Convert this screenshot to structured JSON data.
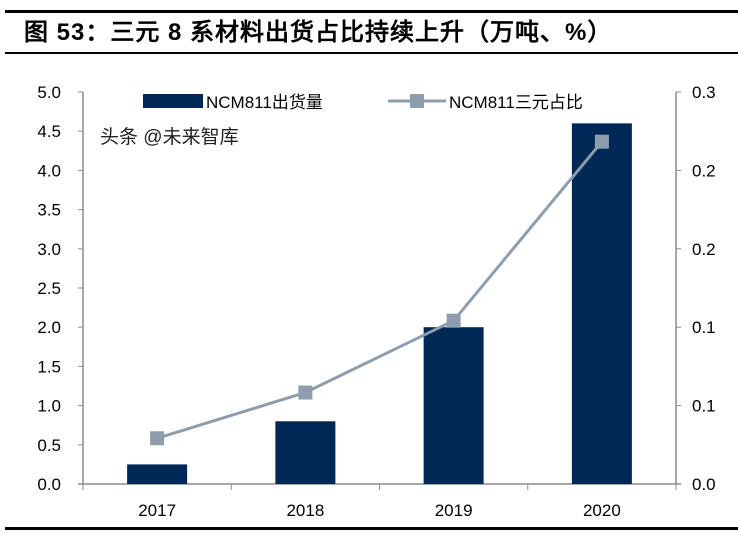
{
  "title": "图 53：三元 8 系材料出货占比持续上升（万吨、%）",
  "watermark": "头条 @未来智库",
  "colors": {
    "bar": "#002856",
    "line": "#8D9DAD",
    "axis": "#8c8c8c"
  },
  "chart_data": {
    "type": "bar+line",
    "title": "图 53：三元 8 系材料出货占比持续上升（万吨、%）",
    "categories": [
      "2017",
      "2018",
      "2019",
      "2020"
    ],
    "series": [
      {
        "name": "NCM811出货量",
        "type": "bar",
        "axis": "left",
        "values": [
          0.25,
          0.8,
          2.0,
          4.6
        ]
      },
      {
        "name": "NCM811三元占比",
        "type": "line",
        "axis": "right",
        "values": [
          0.035,
          0.07,
          0.125,
          0.262
        ]
      }
    ],
    "left_axis": {
      "ylim": [
        0,
        5.0
      ],
      "ticks": [
        "0.0",
        "0.5",
        "1.0",
        "1.5",
        "2.0",
        "2.5",
        "3.0",
        "3.5",
        "4.0",
        "4.5",
        "5.0"
      ]
    },
    "right_axis": {
      "ylim": [
        0,
        0.3
      ],
      "ticks": [
        "0.0",
        "0.1",
        "0.1",
        "0.2",
        "0.2",
        "0.3"
      ]
    },
    "legend": "top-center",
    "grid": false
  }
}
